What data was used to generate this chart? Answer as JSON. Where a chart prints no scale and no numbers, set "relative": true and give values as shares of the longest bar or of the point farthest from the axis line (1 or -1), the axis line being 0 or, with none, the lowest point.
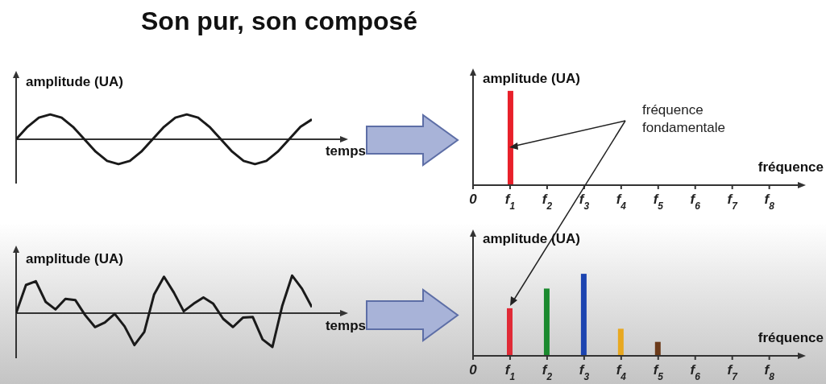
{
  "chart_data": [
    {
      "type": "line",
      "title": "Son pur, son composé",
      "ylabel": "amplitude (UA)",
      "xlabel": "temps",
      "relative": true,
      "tick_labels": false,
      "categories": [
        null,
        null,
        null,
        null,
        null,
        null,
        null,
        null,
        null,
        null,
        null,
        null,
        null,
        null,
        null,
        null,
        null,
        null,
        null,
        null,
        null,
        null,
        null,
        null,
        null,
        null,
        null
      ],
      "series": [
        {
          "color": "#1a1a1a",
          "values": [
            0,
            0.5,
            0.87,
            1,
            0.87,
            0.5,
            0,
            -0.5,
            -0.87,
            -1,
            -0.87,
            -0.5,
            0,
            0.5,
            0.87,
            1,
            0.87,
            0.5,
            0,
            -0.5,
            -0.87,
            -1,
            -0.87,
            -0.5,
            0,
            0.5,
            0.8
          ]
        }
      ]
    },
    {
      "type": "bar",
      "ylabel": "amplitude (UA)",
      "xlabel": "fréquence",
      "relative": true,
      "tick_labels": "x",
      "x": [
        1
      ],
      "values": [
        1
      ],
      "colors": [
        "#e8202a"
      ],
      "xlim": [
        0,
        8.9
      ],
      "xticks": [
        0,
        {
          "value": 1,
          "label": "f$_{1}$"
        },
        {
          "value": 2,
          "label": "f$_{2}$"
        },
        {
          "value": 3,
          "label": "f$_{3}$"
        },
        {
          "value": 4,
          "label": "f$_{4}$"
        },
        {
          "value": 5,
          "label": "f$_{5}$"
        },
        {
          "value": 6,
          "label": "f$_{6}$"
        },
        {
          "value": 7,
          "label": "f$_{7}$"
        },
        {
          "value": 8,
          "label": "f$_{8}$"
        }
      ],
      "annotations": [
        "fréquence fondamentale"
      ]
    },
    {
      "type": "line",
      "ylabel": "amplitude (UA)",
      "xlabel": "temps",
      "relative": true,
      "tick_labels": false,
      "categories": [
        null,
        null,
        null,
        null,
        null,
        null,
        null,
        null,
        null,
        null,
        null,
        null,
        null,
        null,
        null,
        null,
        null,
        null,
        null,
        null,
        null,
        null,
        null,
        null,
        null,
        null,
        null,
        null,
        null,
        null,
        null
      ],
      "series": [
        {
          "color": "#1a1a1a",
          "values": [
            0,
            0.75,
            0.85,
            0.3,
            0.1,
            0.38,
            0.35,
            -0.05,
            -0.37,
            -0.25,
            -0.02,
            -0.35,
            -0.85,
            -0.5,
            0.5,
            0.97,
            0.55,
            0.05,
            0.25,
            0.42,
            0.25,
            -0.15,
            -0.37,
            -0.12,
            -0.1,
            -0.7,
            -0.9,
            0.2,
            1,
            0.65,
            0.16
          ]
        }
      ]
    },
    {
      "type": "bar",
      "ylabel": "amplitude (UA)",
      "xlabel": "fréquence",
      "relative": true,
      "tick_labels": "x",
      "x": [
        1,
        2,
        3,
        4,
        5
      ],
      "values": [
        0.58,
        0.82,
        1,
        0.33,
        0.17
      ],
      "colors": [
        "#e02a36",
        "#1a8a2e",
        "#1c44b0",
        "#e8a820",
        "#6b3a1a"
      ],
      "xlim": [
        0,
        8.9
      ],
      "xticks": [
        0,
        {
          "value": 1,
          "label": "f$_{1}$"
        },
        {
          "value": 2,
          "label": "f$_{2}$"
        },
        {
          "value": 3,
          "label": "f$_{3}$"
        },
        {
          "value": 4,
          "label": "f$_{4}$"
        },
        {
          "value": 5,
          "label": "f$_{5}$"
        },
        {
          "value": 6,
          "label": "f$_{6}$"
        },
        {
          "value": 7,
          "label": "f$_{7}$"
        },
        {
          "value": 8,
          "label": "f$_{8}$"
        }
      ]
    }
  ]
}
